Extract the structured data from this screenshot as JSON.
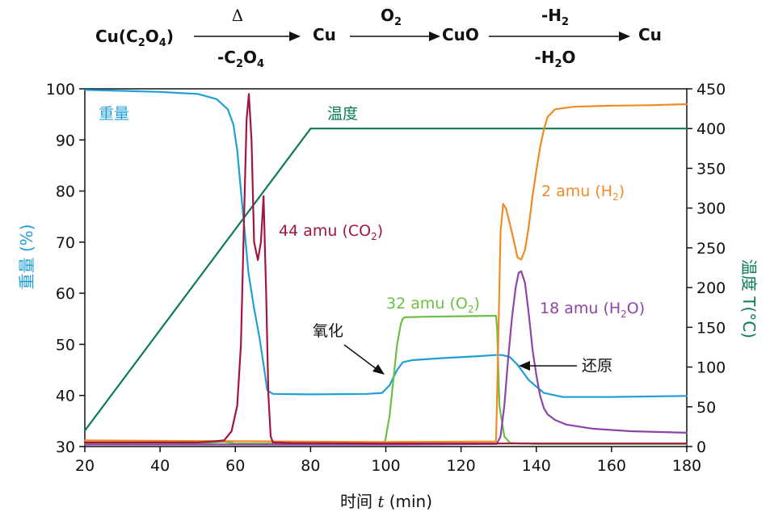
{
  "reaction": {
    "species": [
      "Cu(C",
      "2",
      "O",
      "4",
      ")",
      "Cu",
      "CuO",
      "Cu"
    ],
    "step1_above": "Δ",
    "step1_below": [
      "-C",
      "2",
      "O",
      "4"
    ],
    "step2_above": [
      "O",
      "2"
    ],
    "step3_above": [
      "-H",
      "2"
    ],
    "step3_below": [
      "-H",
      "2",
      "O"
    ]
  },
  "colors": {
    "weight": "#1f9fd8",
    "temperature": "#0b7a5a",
    "co2": "#a0163c",
    "o2": "#6cbf44",
    "h2": "#f08a24",
    "h2o": "#8e44a8",
    "axis": "#111111"
  },
  "chart_data": {
    "type": "line",
    "xlabel": [
      "时间 ",
      "t",
      " (min)"
    ],
    "ylabel_left": "重量 (%)",
    "ylabel_right": "温度 T(°C)",
    "xlim": [
      20,
      180
    ],
    "ylim_left": [
      30,
      100
    ],
    "ylim_right": [
      0,
      450
    ],
    "x_ticks": [
      20,
      40,
      60,
      80,
      100,
      120,
      140,
      160,
      180
    ],
    "y_ticks_left": [
      30,
      40,
      50,
      60,
      70,
      80,
      90,
      100
    ],
    "y_ticks_right": [
      0,
      50,
      100,
      150,
      200,
      250,
      300,
      350,
      400,
      450
    ],
    "grid": false,
    "series": [
      {
        "name": "重量",
        "axis": "left",
        "color_key": "weight",
        "x": [
          20,
          30,
          40,
          45,
          50,
          55,
          58,
          59.5,
          60.5,
          61.5,
          62.5,
          63.5,
          65,
          66.5,
          67.5,
          68.5,
          70,
          80,
          95,
          99,
          101,
          103,
          104.5,
          107,
          115,
          125,
          129,
          131,
          133,
          135,
          138,
          142,
          147,
          160,
          180
        ],
        "y": [
          99.8,
          99.6,
          99.4,
          99.2,
          99.0,
          98.0,
          96.0,
          93.0,
          88.0,
          80.0,
          72.0,
          64.0,
          57.0,
          51.0,
          46.0,
          41.0,
          40.3,
          40.2,
          40.3,
          40.5,
          42.0,
          45.0,
          46.5,
          46.9,
          47.3,
          47.7,
          47.9,
          47.9,
          47.5,
          46.0,
          43.0,
          40.5,
          39.7,
          39.7,
          39.9
        ]
      },
      {
        "name": "温度",
        "axis": "right",
        "color_key": "temperature",
        "x": [
          20,
          80,
          180
        ],
        "y": [
          20,
          400,
          400
        ]
      },
      {
        "name": "44 amu (CO2)",
        "axis": "left",
        "color_key": "co2",
        "x": [
          20,
          50,
          54,
          57,
          59,
          60.5,
          61.5,
          62.5,
          63,
          63.6,
          64.3,
          65,
          66,
          66.8,
          67.5,
          68.2,
          68.8,
          69.4,
          70,
          75,
          100,
          180
        ],
        "y": [
          30.8,
          30.8,
          31.0,
          31.2,
          33.0,
          38.0,
          50.0,
          80.0,
          94.0,
          99.0,
          90.0,
          70.0,
          66.5,
          70.0,
          79.0,
          60.0,
          40.0,
          32.0,
          30.8,
          30.7,
          30.6,
          30.6
        ]
      },
      {
        "name": "32 amu (O2)",
        "axis": "left",
        "color_key": "o2",
        "x": [
          20,
          50,
          57,
          60,
          99,
          99.8,
          101,
          102,
          103,
          104,
          104.5,
          105,
          110,
          120,
          129.3,
          129.6,
          130.2,
          131.5,
          133,
          140,
          180
        ],
        "y": [
          30.6,
          30.6,
          30.9,
          30.6,
          30.6,
          31.0,
          36.0,
          43.0,
          50.0,
          54.0,
          55.0,
          55.3,
          55.4,
          55.5,
          55.6,
          53.0,
          38.0,
          32.0,
          30.7,
          30.5,
          30.5
        ]
      },
      {
        "name": "2 amu (H2)",
        "axis": "left",
        "color_key": "h2",
        "x": [
          20,
          100,
          129.3,
          129.6,
          130.5,
          131.2,
          132,
          133.5,
          135,
          136,
          137,
          138,
          139,
          140,
          141,
          142,
          143,
          145,
          150,
          160,
          170,
          180
        ],
        "y": [
          31.2,
          30.9,
          31.0,
          40.0,
          72.0,
          77.5,
          76.5,
          72.0,
          67.0,
          66.6,
          68.5,
          73.0,
          79.0,
          84.0,
          88.5,
          92.0,
          94.5,
          96.0,
          96.5,
          96.7,
          96.8,
          97.0
        ]
      },
      {
        "name": "18 amu (H2O)",
        "axis": "left",
        "color_key": "h2o",
        "x": [
          20,
          60,
          100,
          129.5,
          130.5,
          131.5,
          132.5,
          133.5,
          134.5,
          135.3,
          136,
          137,
          138,
          139,
          140,
          141,
          142,
          143,
          145,
          148,
          155,
          165,
          180
        ],
        "y": [
          30.4,
          30.4,
          30.4,
          30.5,
          32.0,
          38.0,
          47.0,
          55.0,
          61.0,
          64.0,
          64.3,
          62.0,
          56.0,
          49.0,
          44.0,
          40.0,
          37.5,
          36.3,
          35.2,
          34.3,
          33.5,
          33.0,
          32.7
        ]
      }
    ],
    "labels": {
      "weight": "重量",
      "temperature": "温度",
      "co2": [
        "44 amu (CO",
        "2",
        ")"
      ],
      "o2": [
        "32 amu (O",
        "2",
        ")"
      ],
      "h2": [
        "2 amu (H",
        "2",
        ")"
      ],
      "h2o": [
        "18 amu (H",
        "2",
        "O)"
      ]
    },
    "annotations": [
      "氧化",
      "还原"
    ]
  }
}
